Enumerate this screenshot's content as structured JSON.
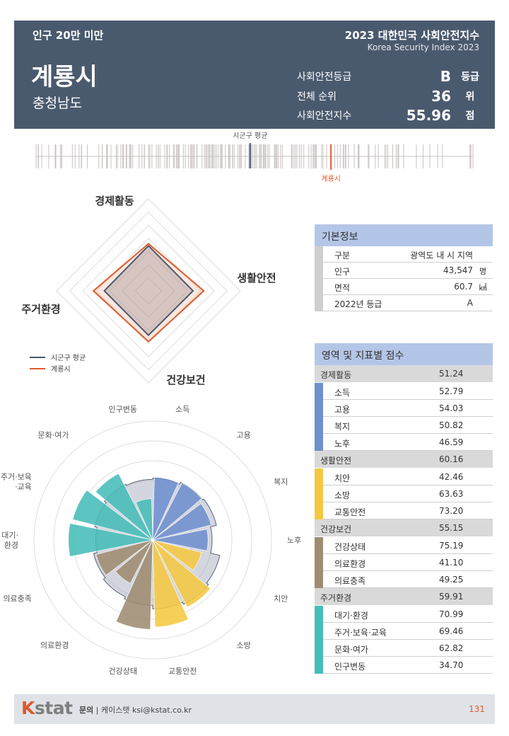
{
  "header": {
    "category": "인구 20만 미만",
    "report_title": "2023 대한민국 사회안전지수",
    "report_subtitle": "Korea Security Index 2023",
    "city": "계룡시",
    "province": "충청남도",
    "stats": [
      {
        "label": "사회안전등급",
        "value": "B",
        "unit": "등급"
      },
      {
        "label": "전체 순위",
        "value": "36",
        "unit": "위"
      },
      {
        "label": "사회안전지수",
        "value": "55.96",
        "unit": "점"
      }
    ]
  },
  "distribution": {
    "avg_label": "시군구 평균",
    "city_label": "계룡시",
    "avg_position": 0.49,
    "city_position": 0.675,
    "colors": {
      "tick": "#c9c2c2",
      "avg": "#4a5a6e",
      "city": "#e05a2b"
    }
  },
  "radar": {
    "axes": [
      "경제활동",
      "생활안전",
      "건강보건",
      "주거환경"
    ],
    "max_score": 100,
    "series": [
      {
        "name": "시군구 평균",
        "values": [
          49.0,
          48.5,
          48.2,
          48.0
        ],
        "color": "#4a5a6e"
      },
      {
        "name": "계룡시",
        "values": [
          51.24,
          60.16,
          55.15,
          59.91
        ],
        "color": "#e05a2b"
      }
    ]
  },
  "polar": {
    "max_score": 100,
    "categories": [
      "소득",
      "고용",
      "복지",
      "노후",
      "치안",
      "소방",
      "교통안전",
      "건강상태",
      "의료환경",
      "의료충족",
      "대기·환경",
      "주거·보육·교육",
      "문화·여가",
      "인구변동"
    ],
    "label_lines": [
      [
        "소득"
      ],
      [
        "고용"
      ],
      [
        "복지"
      ],
      [
        "노후"
      ],
      [
        "치안"
      ],
      [
        "소방"
      ],
      [
        "교통안전"
      ],
      [
        "건강상태"
      ],
      [
        "의료환경"
      ],
      [
        "의료충족"
      ],
      [
        "대기·",
        "환경"
      ],
      [
        "주거·보육",
        "·교육"
      ],
      [
        "문화·여가"
      ],
      [
        "인구변동"
      ]
    ],
    "values": [
      52.79,
      54.03,
      50.82,
      46.59,
      42.46,
      63.63,
      73.2,
      75.19,
      41.1,
      49.25,
      70.99,
      69.46,
      62.82,
      34.7
    ],
    "average_values": [
      52,
      54,
      55,
      50,
      58,
      60,
      58,
      55,
      53,
      51,
      48,
      50,
      52,
      51
    ],
    "domain_of_category": [
      0,
      0,
      0,
      0,
      1,
      1,
      1,
      2,
      2,
      2,
      3,
      3,
      3,
      3
    ]
  },
  "domain_colors": [
    "#6f8fce",
    "#f5c842",
    "#9e8c72",
    "#45bdb8"
  ],
  "basic_info": {
    "title": "기본정보",
    "rows": [
      {
        "key": "구분",
        "value": "광역도 내 시 지역",
        "unit": ""
      },
      {
        "key": "인구",
        "value": "43,547",
        "unit": "명"
      },
      {
        "key": "면적",
        "value": "60.7",
        "unit": "㎢"
      },
      {
        "key": "2022년 등급",
        "value": "A",
        "unit": ""
      }
    ]
  },
  "scores": {
    "title": "영역 및 지표별 점수",
    "domains": [
      {
        "name": "경제활동",
        "score": "51.24",
        "indicators": [
          {
            "name": "소득",
            "score": "52.79"
          },
          {
            "name": "고용",
            "score": "54.03"
          },
          {
            "name": "복지",
            "score": "50.82"
          },
          {
            "name": "노후",
            "score": "46.59"
          }
        ]
      },
      {
        "name": "생활안전",
        "score": "60.16",
        "indicators": [
          {
            "name": "치안",
            "score": "42.46"
          },
          {
            "name": "소방",
            "score": "63.63"
          },
          {
            "name": "교통안전",
            "score": "73.20"
          }
        ]
      },
      {
        "name": "건강보건",
        "score": "55.15",
        "indicators": [
          {
            "name": "건강상태",
            "score": "75.19"
          },
          {
            "name": "의료환경",
            "score": "41.10"
          },
          {
            "name": "의료충족",
            "score": "49.25"
          }
        ]
      },
      {
        "name": "주거환경",
        "score": "59.91",
        "indicators": [
          {
            "name": "대기·환경",
            "score": "70.99"
          },
          {
            "name": "주거·보육·교육",
            "score": "69.46"
          },
          {
            "name": "문화·여가",
            "score": "62.82"
          },
          {
            "name": "인구변동",
            "score": "34.70"
          }
        ]
      }
    ]
  },
  "footer": {
    "logo_k": "K",
    "logo_rest": "stat",
    "contact_label": "문의",
    "contact_sep": "|",
    "contact_text": "케이스탯 ksi@kstat.co.kr",
    "page": "131"
  }
}
